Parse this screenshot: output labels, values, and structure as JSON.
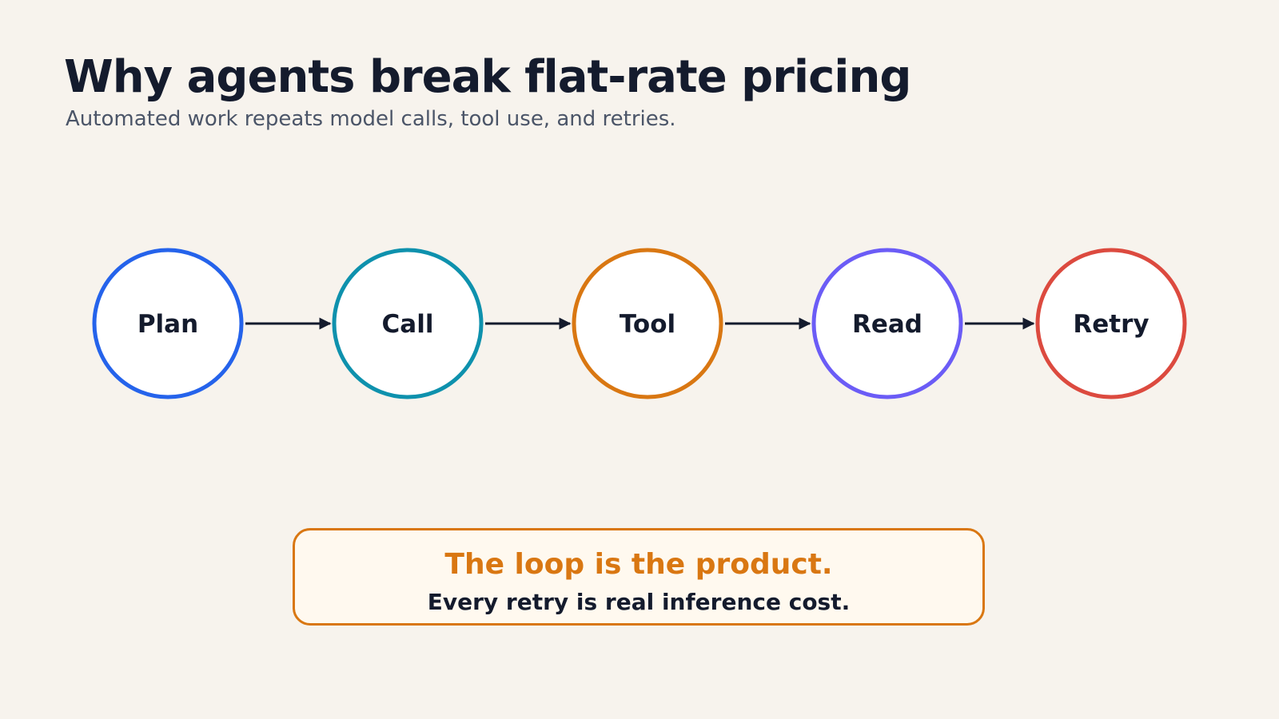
{
  "header": {
    "title": "Why agents break flat-rate pricing",
    "subtitle": "Automated work repeats model calls, tool use, and retries."
  },
  "flow": {
    "nodes": [
      {
        "label": "Plan",
        "color": "#2563eb"
      },
      {
        "label": "Call",
        "color": "#0e91ad"
      },
      {
        "label": "Tool",
        "color": "#d97712"
      },
      {
        "label": "Read",
        "color": "#6b5cf6"
      },
      {
        "label": "Retry",
        "color": "#dc4a3f"
      }
    ],
    "arrow_color": "#141b2d"
  },
  "callout": {
    "headline": "The loop is the product.",
    "body": "Every retry is real inference cost.",
    "accent_color": "#d97712"
  }
}
